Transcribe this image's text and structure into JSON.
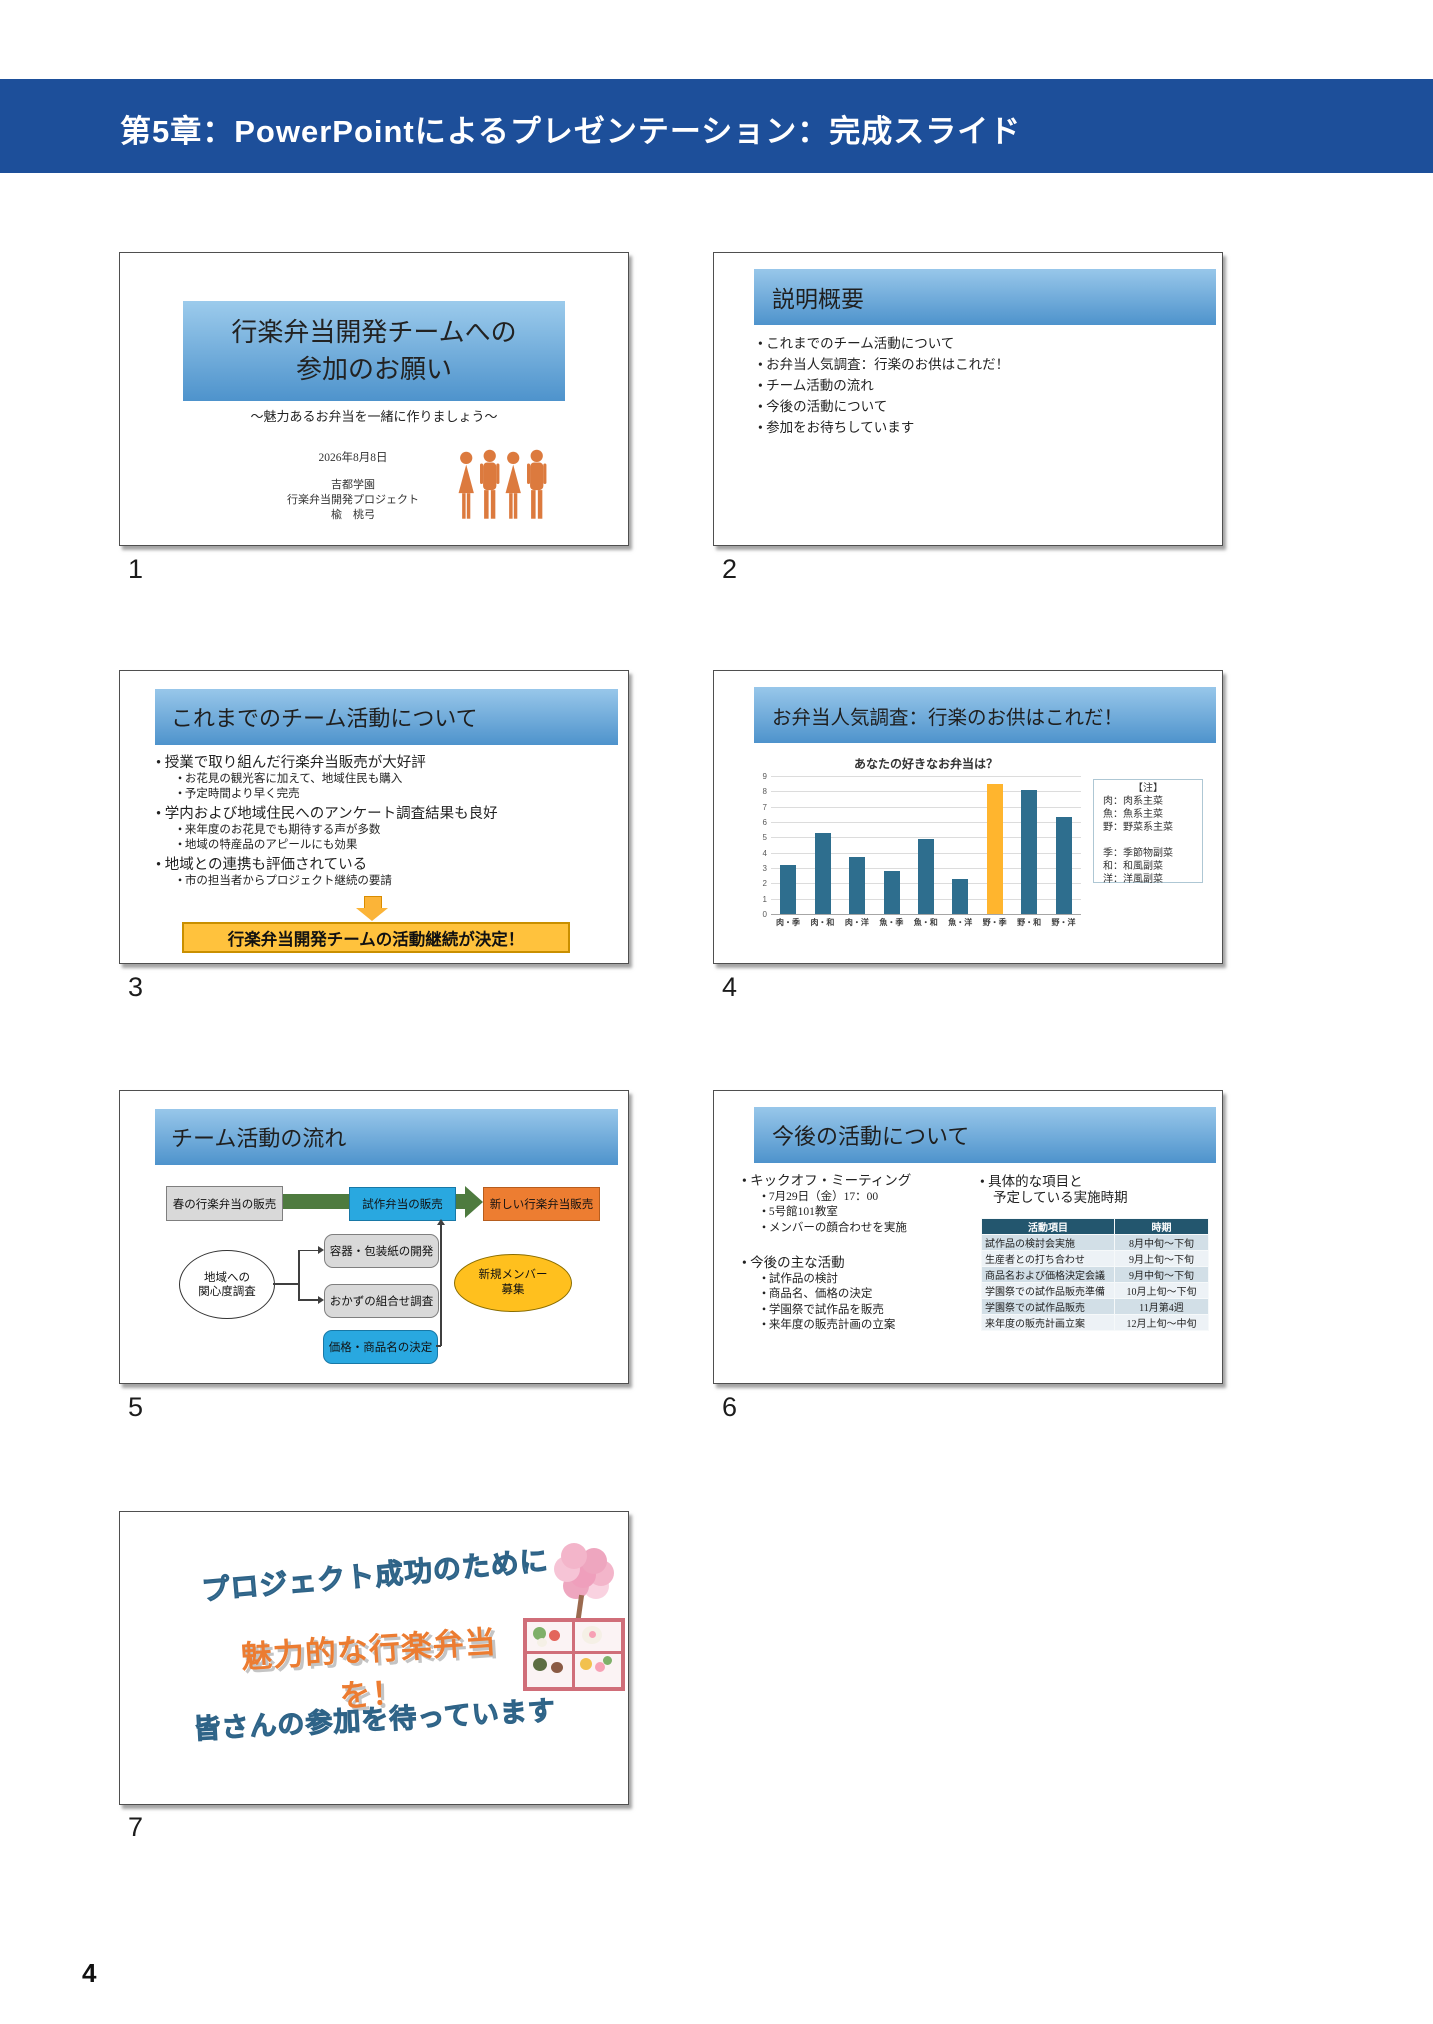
{
  "page": {
    "header_title": "第5章：PowerPointによるプレゼンテーション：完成スライド",
    "page_number": "4"
  },
  "slides": [
    {
      "label": "1",
      "title_line1": "行楽弁当開発チームへの",
      "title_line2": "参加のお願い",
      "subtitle": "～魅力あるお弁当を一緒に作りましょう～",
      "date": "2026年8月8日",
      "org_line1": "吉都学園",
      "org_line2": "行楽弁当開発プロジェクト",
      "author": "楡　桃弓"
    },
    {
      "label": "2",
      "title": "説明概要",
      "bullets": [
        "これまでのチーム活動について",
        "お弁当人気調査：行楽のお供はこれだ！",
        "チーム活動の流れ",
        "今後の活動について",
        "参加をお待ちしています"
      ]
    },
    {
      "label": "3",
      "title": "これまでのチーム活動について",
      "items": [
        {
          "text": "授業で取り組んだ行楽弁当販売が大好評",
          "subs": [
            "お花見の観光客に加えて、地域住民も購入",
            "予定時間より早く完売"
          ]
        },
        {
          "text": "学内および地域住民へのアンケート調査結果も良好",
          "subs": [
            "来年度のお花見でも期待する声が多数",
            "地域の特産品のアピールにも効果"
          ]
        },
        {
          "text": "地域との連携も評価されている",
          "subs": [
            "市の担当者からプロジェクト継続の要請"
          ]
        }
      ],
      "conclusion": "行楽弁当開発チームの活動継続が決定！"
    },
    {
      "label": "4",
      "title": "お弁当人気調査：行楽のお供はこれだ！",
      "chart_data": {
        "type": "bar",
        "title": "あなたの好きなお弁当は？",
        "categories": [
          "肉・季",
          "肉・和",
          "肉・洋",
          "魚・季",
          "魚・和",
          "魚・洋",
          "野・季",
          "野・和",
          "野・洋"
        ],
        "values": [
          3.2,
          5.3,
          3.7,
          2.8,
          4.9,
          2.3,
          8.5,
          8.1,
          6.3
        ],
        "ylim": [
          0,
          9
        ],
        "ytick_step": 1,
        "grid": true,
        "bar_color": "#2e6e8e",
        "highlight_index": 6,
        "highlight_color": "#ffb52e",
        "legend_title": "【注】",
        "legend_lines": [
          "肉：肉系主菜",
          "魚：魚系主菜",
          "野：野菜系主菜",
          "",
          "季：季節物副菜",
          "和：和風副菜",
          "洋：洋風副菜"
        ]
      }
    },
    {
      "label": "5",
      "title": "チーム活動の流れ",
      "flow": {
        "box_spring": "春の行楽弁当の販売",
        "box_trial": "試作弁当の販売",
        "box_new": "新しい行楽弁当販売",
        "ellipse_survey_line1": "地域への",
        "ellipse_survey_line2": "関心度調査",
        "box_package": "容器・包装紙の開発",
        "box_okazu": "おかずの組合せ調査",
        "box_price": "価格・商品名の決定",
        "ellipse_members_line1": "新規メンバー",
        "ellipse_members_line2": "募集"
      }
    },
    {
      "label": "6",
      "title": "今後の活動について",
      "left_bullets": [
        {
          "text": "キックオフ・ミーティング",
          "subs": [
            "7月29日（金）17：00",
            "5号館101教室",
            "メンバーの顔合わせを実施"
          ]
        },
        {
          "text": "今後の主な活動",
          "subs": [
            "試作品の検討",
            "商品名、価格の決定",
            "学園祭で試作品を販売",
            "来年度の販売計画の立案"
          ]
        }
      ],
      "right_bullet_line1": "具体的な項目と",
      "right_bullet_line2": "予定している実施時期",
      "table": {
        "headers": [
          "活動項目",
          "時期"
        ],
        "rows": [
          [
            "試作品の検討会実施",
            "8月中旬～下旬"
          ],
          [
            "生産者との打ち合わせ",
            "9月上旬～下旬"
          ],
          [
            "商品名および価格決定会議",
            "9月中旬～下旬"
          ],
          [
            "学園祭での試作品販売準備",
            "10月上旬～下旬"
          ],
          [
            "学園祭での試作品販売",
            "11月第4週"
          ],
          [
            "来年度の販売計画立案",
            "12月上旬～中旬"
          ]
        ]
      }
    },
    {
      "label": "7",
      "line1": "プロジェクト成功のために",
      "line2": "魅力的な行楽弁当を！",
      "line3": "皆さんの参加を待っています"
    }
  ]
}
